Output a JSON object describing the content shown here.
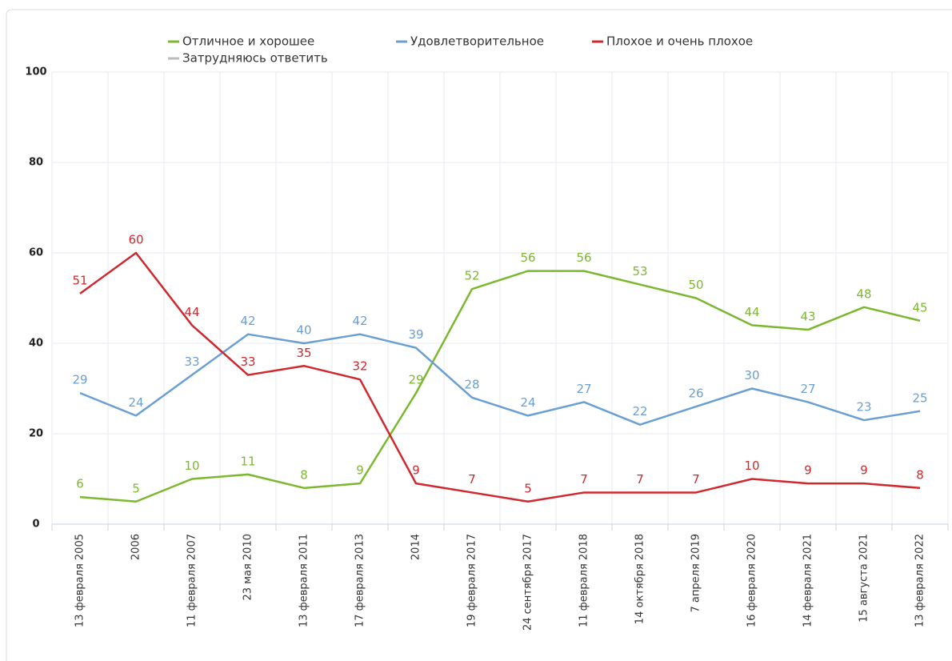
{
  "chart_data": {
    "type": "line",
    "categories": [
      "13 февраля 2005",
      "2006",
      "11 февраля 2007",
      "23 мая 2010",
      "13 февраля 2011",
      "17 февраля 2013",
      "2014",
      "19 февраля 2017",
      "24 сентября 2017",
      "11 февраля 2018",
      "14 октября 2018",
      "7 апреля 2019",
      "16 февраля 2020",
      "14 февраля 2021",
      "15 августа 2021",
      "13 февраля 2022"
    ],
    "series": [
      {
        "name": "Отличное и хорошее",
        "color": "#7cb82f",
        "values": [
          6,
          5,
          10,
          11,
          8,
          9,
          29,
          52,
          56,
          56,
          53,
          50,
          44,
          43,
          48,
          45
        ]
      },
      {
        "name": "Удовлетворительное",
        "color": "#6a9fd4",
        "values": [
          29,
          24,
          33,
          42,
          40,
          42,
          39,
          28,
          24,
          27,
          22,
          26,
          30,
          27,
          23,
          25
        ]
      },
      {
        "name": "Плохое и очень плохое",
        "color": "#d0282e",
        "values": [
          51,
          60,
          44,
          33,
          35,
          32,
          9,
          7,
          5,
          7,
          7,
          7,
          10,
          9,
          9,
          8
        ]
      },
      {
        "name": "Затрудняюсь ответить",
        "color": "#bbbbbb",
        "values": [
          null,
          null,
          null,
          null,
          null,
          null,
          null,
          null,
          null,
          null,
          null,
          null,
          null,
          null,
          null,
          null
        ]
      }
    ],
    "ylim": [
      0,
      100
    ],
    "yticks": [
      0,
      20,
      40,
      60,
      80,
      100
    ],
    "grid": true,
    "data_labels": true
  }
}
